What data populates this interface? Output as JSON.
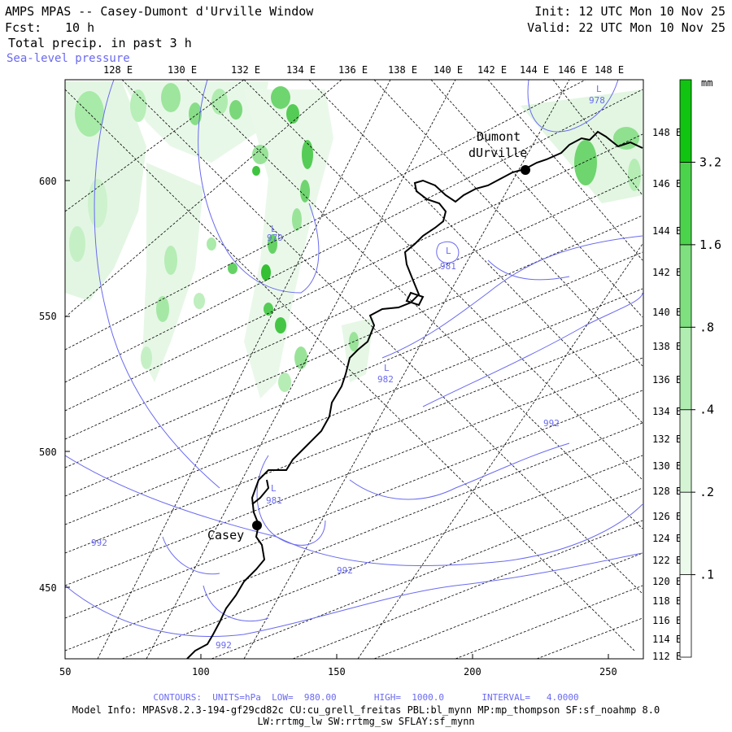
{
  "header": {
    "title": "AMPS MPAS -- Casey-Dumont d'Urville Window",
    "fcst_label": "Fcst:",
    "fcst_value": "10 h",
    "field": "Total precip. in past 3 h",
    "overlay": "Sea-level pressure",
    "init": "Init: 12 UTC Mon 10 Nov 25",
    "valid": "Valid: 22 UTC Mon 10 Nov 25"
  },
  "map": {
    "top_lon_labels": [
      "128 E",
      "130 E",
      "132 E",
      "134 E",
      "136 E",
      "138 E",
      "140 E",
      "142 E",
      "144 E",
      "146 E",
      "148 E"
    ],
    "right_lon_labels": [
      "148 E",
      "146 E",
      "144 E",
      "142 E",
      "140 E",
      "138 E",
      "136 E",
      "134 E",
      "132 E",
      "130 E",
      "128 E",
      "126 E",
      "124 E",
      "122 E",
      "120 E",
      "118 E",
      "116 E",
      "114 E",
      "112 E"
    ],
    "x_ticks": [
      "50",
      "100",
      "150",
      "200",
      "250"
    ],
    "y_ticks": [
      "600",
      "550",
      "500",
      "450"
    ],
    "pressure_labels": [
      {
        "mark": "L",
        "value": "978"
      },
      {
        "mark": "L",
        "value": "979"
      },
      {
        "mark": "L",
        "value": "981"
      },
      {
        "mark": "L",
        "value": "982"
      },
      {
        "mark": "L",
        "value": "981"
      },
      {
        "mark": "",
        "value": "992"
      },
      {
        "mark": "",
        "value": "992"
      },
      {
        "mark": "",
        "value": "992"
      },
      {
        "mark": "",
        "value": "992"
      }
    ],
    "stations": [
      {
        "name": "Dumont dUrville"
      },
      {
        "name": "Casey"
      }
    ],
    "colors": {
      "precip_light": "#dff5df",
      "precip_mid": "#9ee79e",
      "precip_dark": "#22cc22",
      "isobar": "#6a6af0",
      "coast": "#000000"
    }
  },
  "legend": {
    "unit": "mm",
    "levels": [
      ".1",
      ".2",
      ".4",
      ".8",
      "1.6",
      "3.2"
    ],
    "colors": [
      "#ffffff",
      "#ecfaec",
      "#d4f4d4",
      "#b0edb0",
      "#7ee07e",
      "#4cd34c",
      "#11c411"
    ]
  },
  "footer": {
    "contours": "CONTOURS:  UNITS=hPa  LOW=  980.00       HIGH=  1000.0       INTERVAL=   4.0000",
    "model_info": "Model Info: MPASv8.2.3-194-gf29cd82c CU:cu_grell_freitas PBL:bl_mynn MP:mp_thompson SF:sf_noahmp 8.0",
    "model_info2": "LW:rrtmg_lw SW:rrtmg_sw SFLAY:sf_mynn"
  }
}
